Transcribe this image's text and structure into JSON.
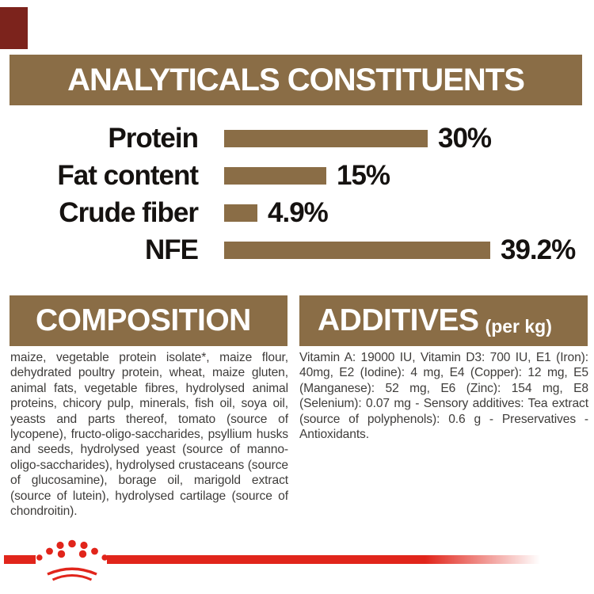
{
  "brand": {
    "accent_red": "#e1251b",
    "corner_red": "#7c231c",
    "brown": "#8a6d46",
    "logo_icon": "royal-canin-crown-icon"
  },
  "analyticals": {
    "title": "ANALYTICALS CONSTITUENTS"
  },
  "chart_data": {
    "type": "bar",
    "orientation": "horizontal",
    "title": "ANALYTICALS CONSTITUENTS",
    "categories": [
      "Protein",
      "Fat content",
      "Crude fiber",
      "NFE"
    ],
    "values": [
      30,
      15,
      4.9,
      39.2
    ],
    "value_labels": [
      "30%",
      "15%",
      "4.9%",
      "39.2%"
    ],
    "unit": "%",
    "xlim": [
      0,
      42
    ],
    "grid": false,
    "legend": false,
    "bar_color": "#8a6d46"
  },
  "composition": {
    "title": "COMPOSITION",
    "text": "maize, vegetable protein isolate*, maize flour, dehydrated poultry protein, wheat, maize gluten, animal fats, vegetable fibres, hydrolysed animal proteins, chicory pulp, minerals, fish oil, soya oil, yeasts and parts thereof, tomato (source of lycopene), fructo-oligo-saccharides, psyllium husks and seeds, hydrolysed yeast (source of manno-oligo-saccharides), hydrolysed crustaceans (source of glucosamine), borage oil, marigold extract (source of lutein), hydrolysed cartilage (source of chondroitin)."
  },
  "additives": {
    "title": "ADDITIVES",
    "unit_suffix": "(per kg)",
    "text": "Vitamin A: 19000 IU, Vitamin D3: 700 IU, E1 (Iron): 40mg, E2 (Iodine): 4 mg, E4 (Copper): 12 mg, E5 (Manganese): 52 mg, E6 (Zinc): 154 mg, E8 (Selenium): 0.07 mg - Sensory additives: Tea extract (source of polyphenols): 0.6 g - Preservatives - Antioxidants."
  }
}
